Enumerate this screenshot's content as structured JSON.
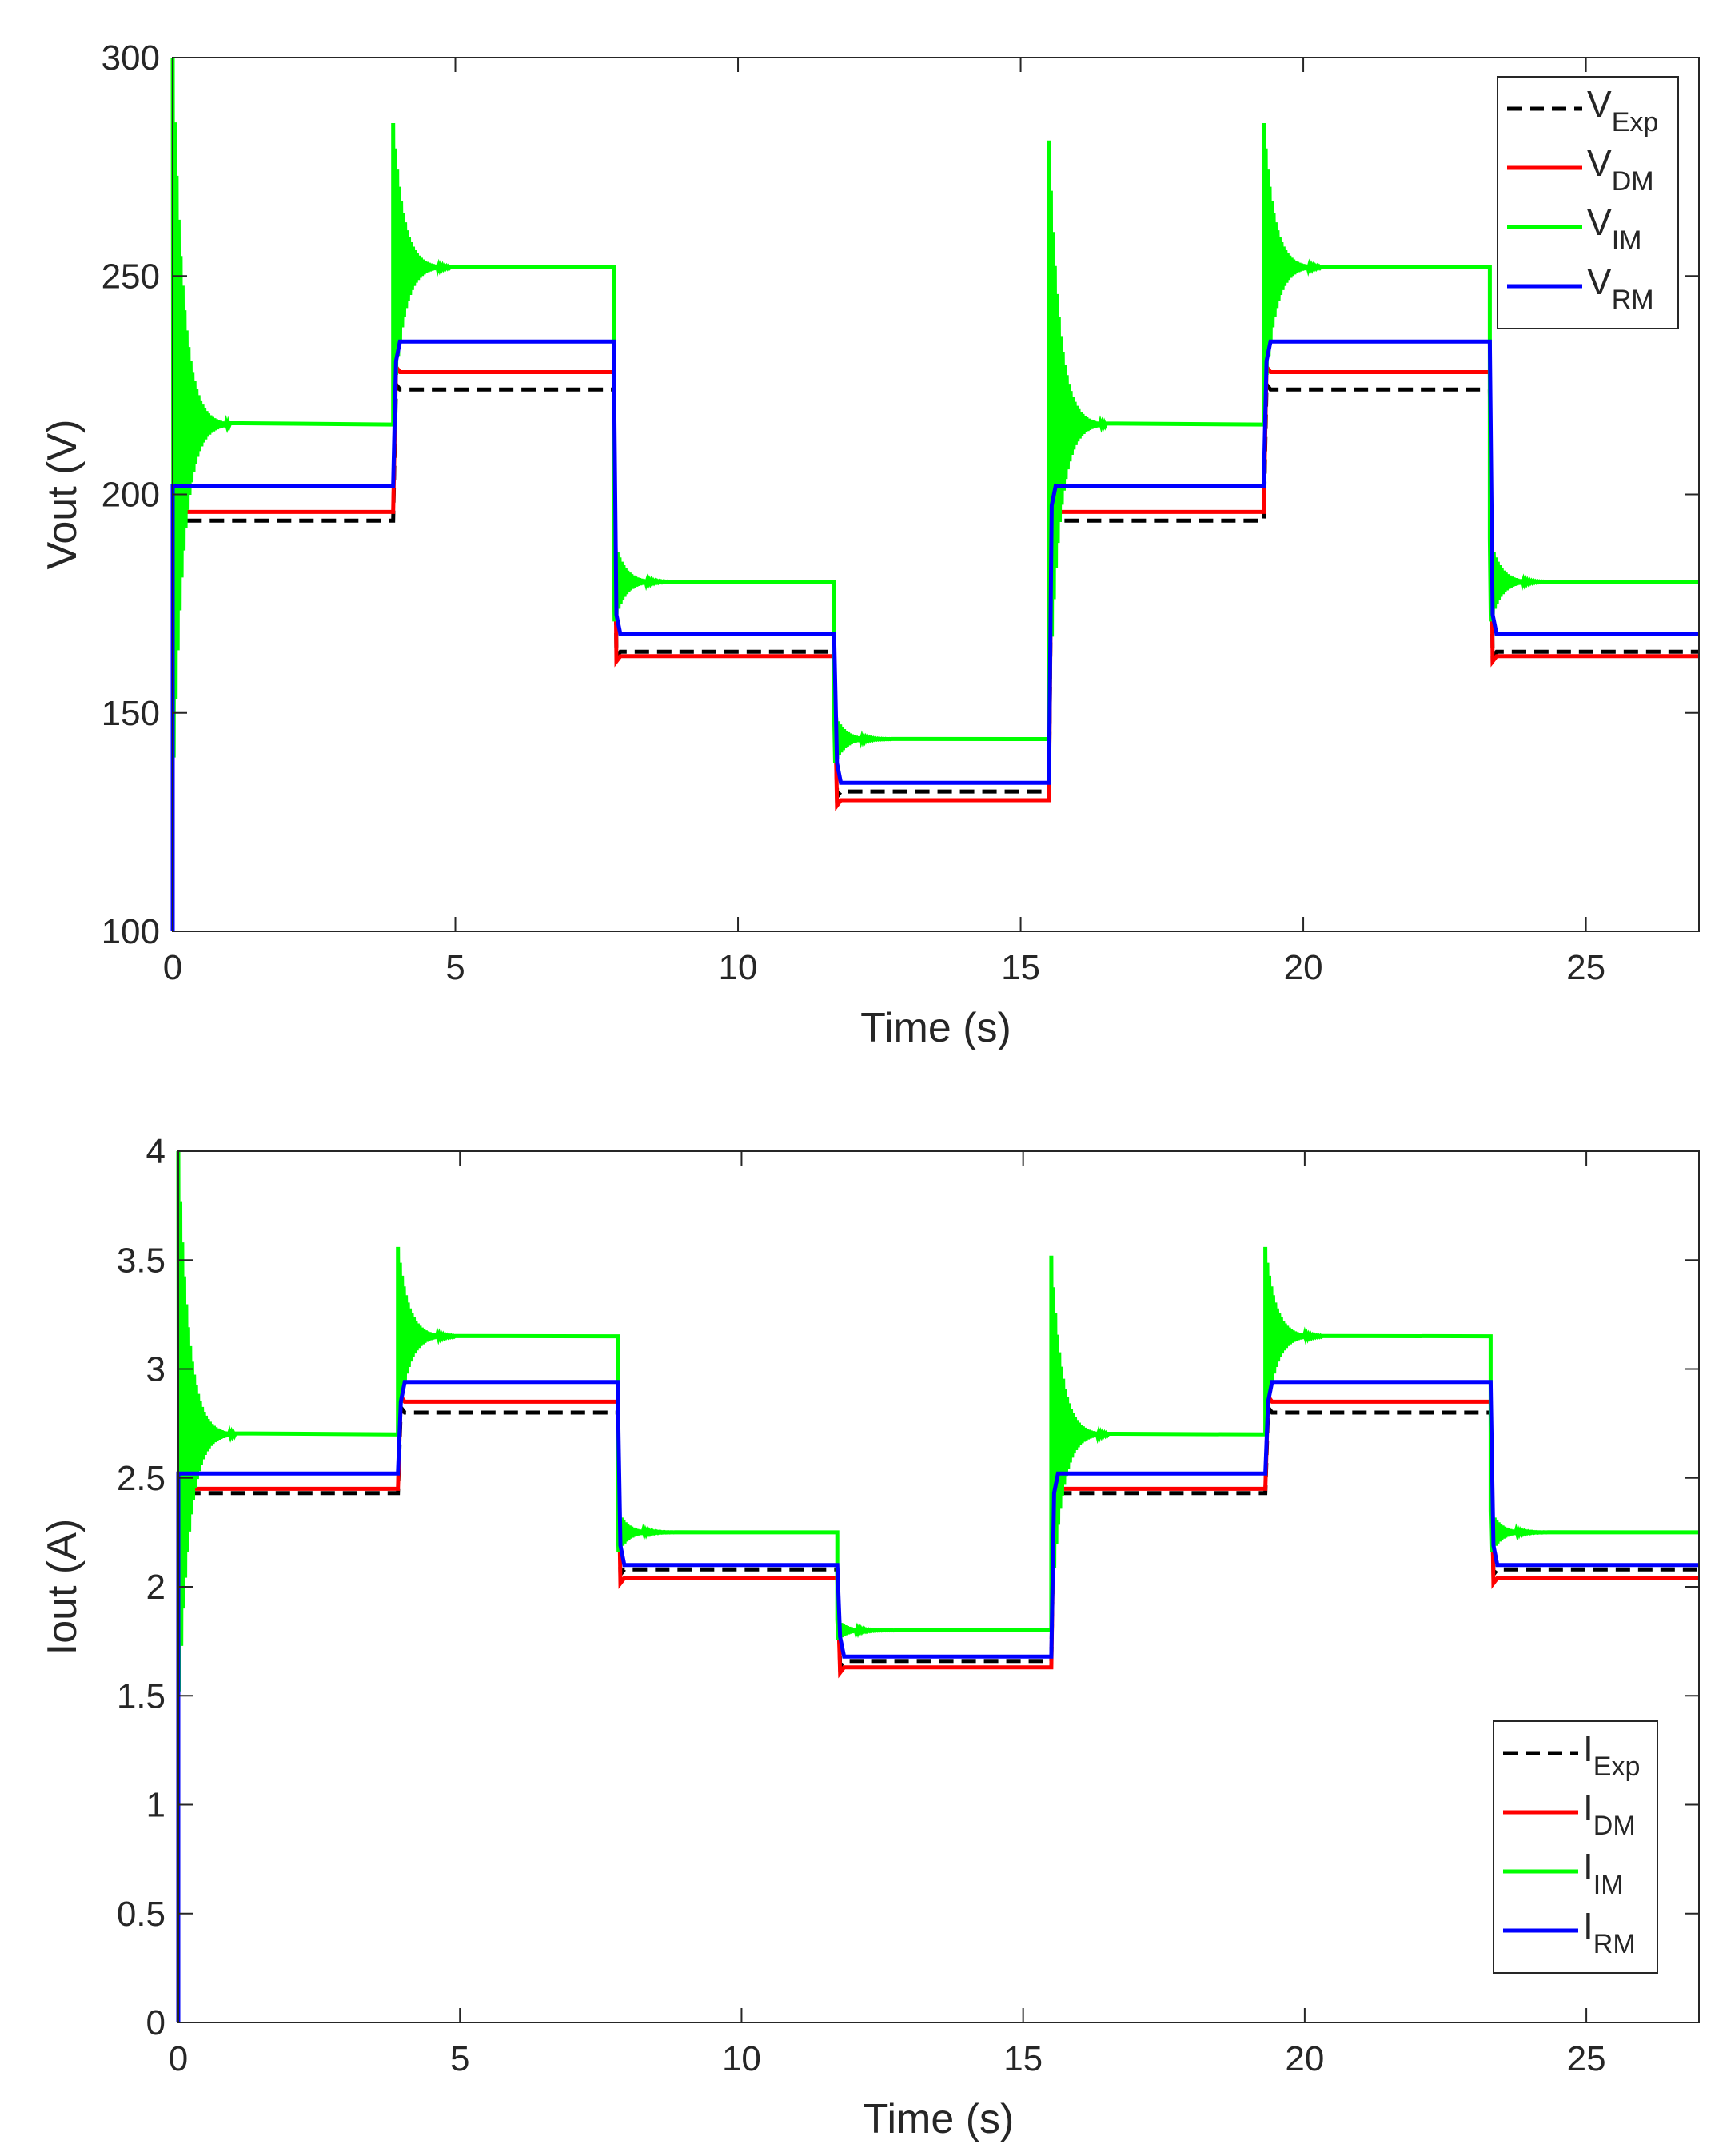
{
  "colors": {
    "Exp": "#000000",
    "DM": "#ff0000",
    "IM": "#00ff00",
    "RM": "#0000ff"
  },
  "chart_data": [
    {
      "type": "line",
      "xlabel": "Time (s)",
      "ylabel": "Vout (V)",
      "xlim": [
        0,
        27
      ],
      "ylim": [
        100,
        300
      ],
      "xticks": [
        0,
        5,
        10,
        15,
        20,
        25
      ],
      "yticks": [
        100,
        150,
        200,
        250,
        300
      ],
      "grid": false,
      "legend_position": "top-right",
      "step_times": [
        0,
        3.9,
        7.8,
        11.7,
        15.5,
        19.3,
        23.3
      ],
      "series": [
        {
          "name": "V",
          "sub": "Exp",
          "style": "dashed",
          "levels": [
            194,
            224,
            164,
            132,
            194,
            224,
            164
          ]
        },
        {
          "name": "V",
          "sub": "DM",
          "style": "solid",
          "levels": [
            196,
            228,
            163,
            130,
            196,
            228,
            163
          ]
        },
        {
          "name": "V",
          "sub": "IM",
          "style": "solid",
          "levels": [
            216,
            252,
            180,
            144,
            216,
            252,
            180
          ],
          "overshoot": [
            300,
            285,
            190,
            150,
            281,
            285,
            190
          ]
        },
        {
          "name": "V",
          "sub": "RM",
          "style": "solid",
          "levels": [
            202,
            235,
            168,
            134,
            202,
            235,
            168
          ]
        }
      ]
    },
    {
      "type": "line",
      "xlabel": "Time (s)",
      "ylabel": "Iout (A)",
      "xlim": [
        0,
        27
      ],
      "ylim": [
        0,
        4
      ],
      "xticks": [
        0,
        5,
        10,
        15,
        20,
        25
      ],
      "yticks": [
        0,
        0.5,
        1,
        1.5,
        2,
        2.5,
        3,
        3.5,
        4
      ],
      "grid": false,
      "legend_position": "bottom-right",
      "step_times": [
        0,
        3.9,
        7.8,
        11.7,
        15.5,
        19.3,
        23.3
      ],
      "series": [
        {
          "name": "I",
          "sub": "Exp",
          "style": "dashed",
          "levels": [
            2.43,
            2.8,
            2.08,
            1.66,
            2.43,
            2.8,
            2.08
          ]
        },
        {
          "name": "I",
          "sub": "DM",
          "style": "solid",
          "levels": [
            2.45,
            2.85,
            2.04,
            1.63,
            2.45,
            2.85,
            2.04
          ]
        },
        {
          "name": "I",
          "sub": "IM",
          "style": "solid",
          "levels": [
            2.7,
            3.15,
            2.25,
            1.8,
            2.7,
            3.15,
            2.25
          ],
          "overshoot": [
            4.0,
            3.56,
            2.35,
            1.85,
            3.52,
            3.56,
            2.35
          ]
        },
        {
          "name": "I",
          "sub": "RM",
          "style": "solid",
          "levels": [
            2.52,
            2.94,
            2.1,
            1.68,
            2.52,
            2.94,
            2.1
          ]
        }
      ]
    }
  ]
}
